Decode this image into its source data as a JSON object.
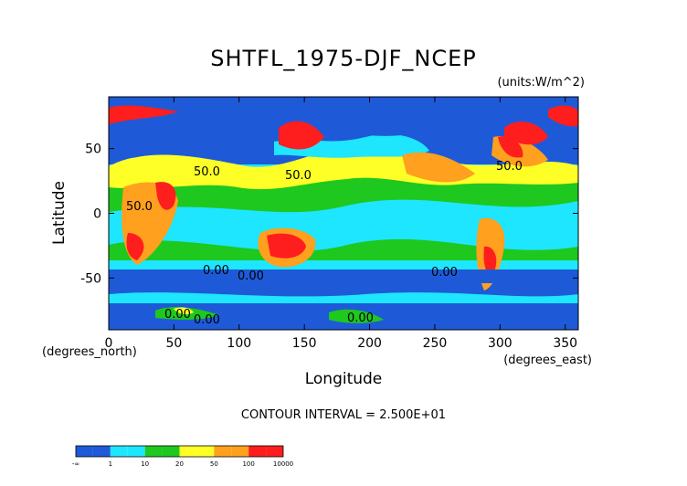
{
  "chart_data": {
    "type": "heatmap",
    "title": "SHTFL_1975-DJF_NCEP",
    "units_label": "(units:W/m^2)",
    "xlabel": "Longitude",
    "ylabel": "Latitude",
    "x_unit_label": "(degrees_east)",
    "y_unit_label": "(degrees_north)",
    "xlim": [
      0,
      360
    ],
    "ylim": [
      -90,
      90
    ],
    "x_ticks": [
      0,
      50,
      100,
      150,
      200,
      250,
      300,
      350
    ],
    "y_ticks": [
      50,
      0,
      -50
    ],
    "footer": "CONTOUR INTERVAL = 2.500E+01",
    "contour_labels": [
      "50.0",
      "50.0",
      "50.0",
      "50.0",
      "0.00",
      "0.00",
      "0.00",
      "0.00",
      "0.00",
      "0.00"
    ],
    "colorbar": {
      "labels": [
        "-∞",
        "1",
        "10",
        "20",
        "50",
        "100",
        "10000"
      ],
      "colors": [
        "#1e5ad8",
        "#1e5ad8",
        "#1ee6ff",
        "#1ee6ff",
        "#1ec81e",
        "#1ec81e",
        "#ffff28",
        "#ffff28",
        "#ffa01e",
        "#ffa01e",
        "#ff1e1e",
        "#ff1e1e"
      ]
    },
    "colors": {
      "ocean_cold": "#1e5ad8",
      "low": "#1ee6ff",
      "mid": "#1ec81e",
      "warm": "#ffff28",
      "hot": "#ffa01e",
      "max": "#ff1e1e"
    }
  }
}
